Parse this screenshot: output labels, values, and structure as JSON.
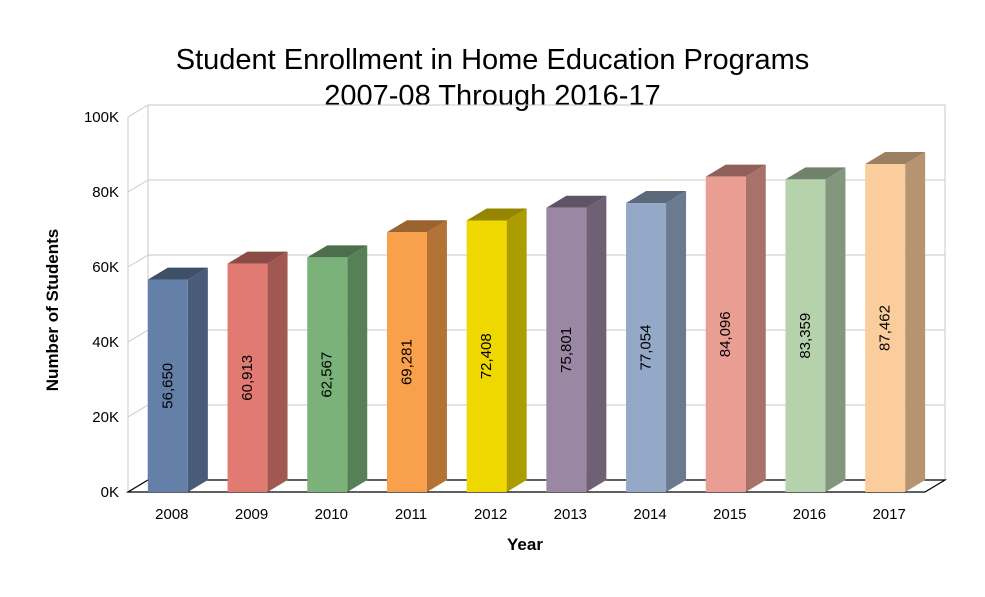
{
  "chart_data": {
    "type": "bar",
    "title": "Student Enrollment in Home Education Programs",
    "subtitle": "2007-08 Through 2016-17",
    "xlabel": "Year",
    "ylabel": "Number of Students",
    "categories": [
      "2008",
      "2009",
      "2010",
      "2011",
      "2012",
      "2013",
      "2014",
      "2015",
      "2016",
      "2017"
    ],
    "values": [
      56650,
      60913,
      62567,
      69281,
      72408,
      75801,
      77054,
      84096,
      83359,
      87462
    ],
    "data_labels": [
      "56,650",
      "60,913",
      "62,567",
      "69,281",
      "72,408",
      "75,801",
      "77,054",
      "84,096",
      "83,359",
      "87,462"
    ],
    "ylim": [
      0,
      100000
    ],
    "yticks": [
      {
        "value": 0,
        "label": "0K"
      },
      {
        "value": 20000,
        "label": "20K"
      },
      {
        "value": 40000,
        "label": "40K"
      },
      {
        "value": 60000,
        "label": "60K"
      },
      {
        "value": 80000,
        "label": "80K"
      },
      {
        "value": 100000,
        "label": "100K"
      }
    ],
    "grid": true,
    "colors": [
      "#6480a8",
      "#e07a73",
      "#7ab27a",
      "#f8a04c",
      "#eed800",
      "#9a87a3",
      "#94a9c7",
      "#e99d93",
      "#b5d2ad",
      "#fbcd9d"
    ]
  }
}
